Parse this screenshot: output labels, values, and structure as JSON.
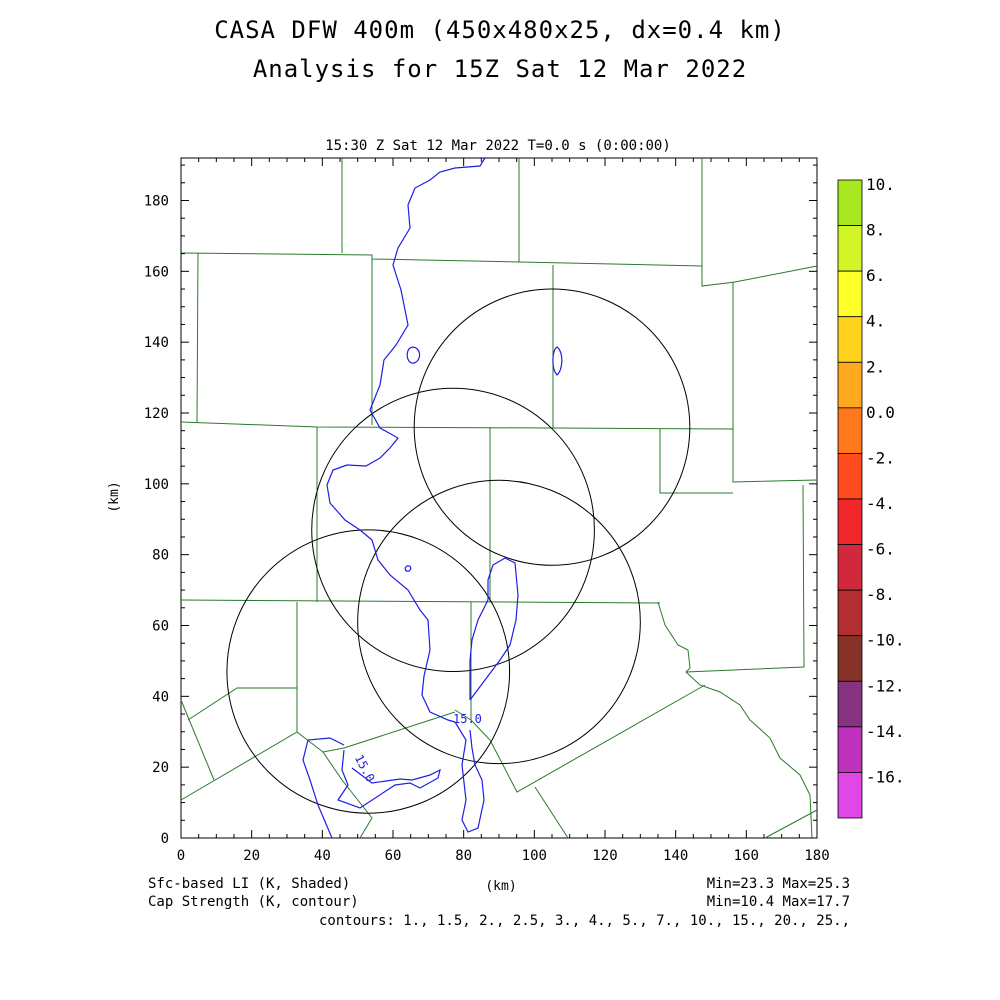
{
  "title_line1": "CASA DFW 400m (450x480x25, dx=0.4 km)",
  "title_line2": "Analysis for 15Z Sat 12 Mar 2022",
  "plot_header": "15:30 Z Sat 12 Mar 2022   T=0.0 s (0:00:00)",
  "x_axis": {
    "label": "(km)",
    "ticks": [
      "0",
      "20",
      "40",
      "60",
      "80",
      "100",
      "120",
      "140",
      "160",
      "180"
    ]
  },
  "y_axis": {
    "label": "(km)",
    "ticks": [
      "0",
      "20",
      "40",
      "60",
      "80",
      "100",
      "120",
      "140",
      "160",
      "180"
    ]
  },
  "shaded_field": {
    "label": "Sfc-based LI (K, Shaded)",
    "minmax": "Min=23.3 Max=25.3"
  },
  "contour_field": {
    "label": "Cap Strength (K, contour)",
    "minmax": "Min=10.4 Max=17.7"
  },
  "contours_text": "contours: 1., 1.5, 2., 2.5, 3., 4., 5., 7., 10., 15., 20., 25.,",
  "contour_labels": [
    "15.0",
    "15.0"
  ],
  "colorbar": {
    "labels": [
      "10.",
      "8.",
      "6.",
      "4.",
      "2.",
      "0.0",
      "-2.",
      "-4.",
      "-6.",
      "-8.",
      "-10.",
      "-12.",
      "-14.",
      "-16."
    ],
    "colors": [
      "#a8e820",
      "#d2f528",
      "#ffff2a",
      "#ffd21e",
      "#ffaa1e",
      "#ff781e",
      "#ff4b1e",
      "#f0282d",
      "#d2283c",
      "#b42d32",
      "#873228",
      "#873282",
      "#be32be",
      "#e146e6"
    ]
  },
  "radar_rings_km": [
    {
      "cx": 105,
      "cy": 116,
      "r": 39
    },
    {
      "cx": 77,
      "cy": 87,
      "r": 40
    },
    {
      "cx": 90,
      "cy": 61,
      "r": 40
    },
    {
      "cx": 53,
      "cy": 47,
      "r": 40
    }
  ],
  "colors": {
    "county_lines": "#2a7a2a",
    "contour": "#1e1ee6",
    "rings": "#000000"
  }
}
